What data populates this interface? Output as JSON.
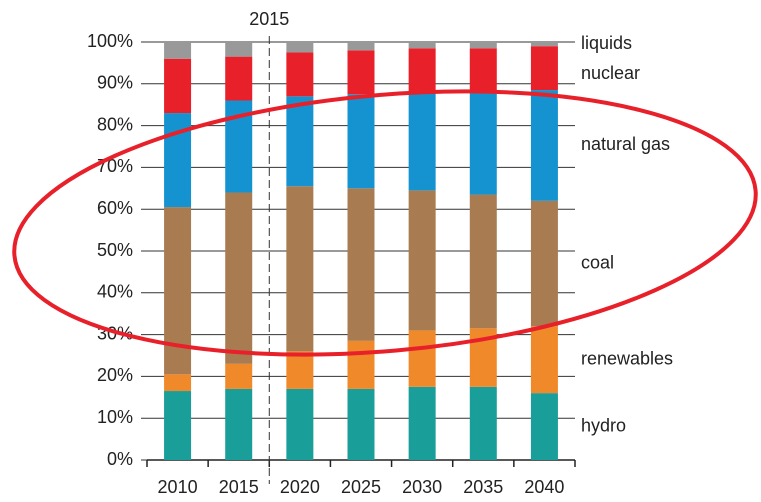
{
  "chart_data": {
    "type": "stacked_bar",
    "categories": [
      "2010",
      "2015",
      "2020",
      "2025",
      "2030",
      "2035",
      "2040"
    ],
    "series": [
      {
        "name": "hydro",
        "color": "#1a9e99",
        "values": [
          16.5,
          17,
          17,
          17,
          17.5,
          17.5,
          16
        ]
      },
      {
        "name": "renewables",
        "color": "#f0892a",
        "values": [
          4,
          6,
          9,
          11.5,
          13.5,
          14,
          16
        ]
      },
      {
        "name": "coal",
        "color": "#a87c50",
        "values": [
          40,
          41,
          39.5,
          36.5,
          33.5,
          32,
          30
        ]
      },
      {
        "name": "natural gas",
        "color": "#1593d0",
        "values": [
          22.5,
          22,
          21.5,
          22.5,
          23.5,
          24.5,
          26.5
        ]
      },
      {
        "name": "nuclear",
        "color": "#e8202a",
        "values": [
          13,
          10.5,
          10.5,
          10.5,
          10.5,
          10.5,
          10.5
        ]
      },
      {
        "name": "liquids",
        "color": "#999999",
        "values": [
          4,
          3.5,
          2.5,
          2,
          1.5,
          1.5,
          1
        ]
      }
    ],
    "ylim": [
      0,
      100
    ],
    "yticks": [
      {
        "value": 0,
        "label": "0%"
      },
      {
        "value": 10,
        "label": "10%"
      },
      {
        "value": 20,
        "label": "20%"
      },
      {
        "value": 30,
        "label": "30%"
      },
      {
        "value": 40,
        "label": "40%"
      },
      {
        "value": 50,
        "label": "50%"
      },
      {
        "value": 60,
        "label": "60%"
      },
      {
        "value": 70,
        "label": "70%"
      },
      {
        "value": 80,
        "label": "80%"
      },
      {
        "value": 90,
        "label": "90%"
      },
      {
        "value": 100,
        "label": "100%"
      }
    ],
    "grid": true,
    "annotation": "2015"
  }
}
